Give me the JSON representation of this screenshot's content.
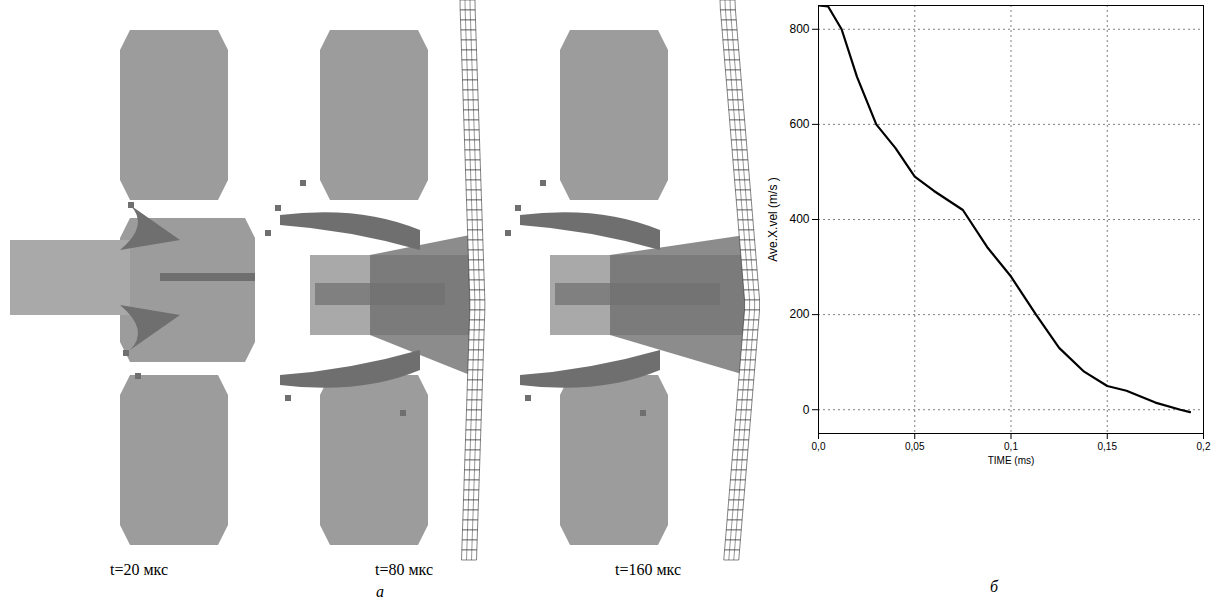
{
  "chart_data": {
    "type": "line",
    "x_label": "TIME (ms)",
    "y_label": "Ave.X.vel (m/s )",
    "x": [
      0,
      0.005,
      0.012,
      0.02,
      0.03,
      0.04,
      0.05,
      0.06,
      0.075,
      0.088,
      0.1,
      0.113,
      0.125,
      0.138,
      0.15,
      0.16,
      0.175,
      0.188,
      0.193
    ],
    "values": [
      850,
      848,
      800,
      700,
      600,
      550,
      490,
      460,
      420,
      340,
      280,
      200,
      130,
      80,
      50,
      40,
      15,
      0,
      -5
    ],
    "color": "#000000",
    "xlim": [
      0,
      0.2
    ],
    "ylim": [
      -50,
      850
    ],
    "xticks": [
      {
        "value": 0,
        "label": "0,0"
      },
      {
        "value": 0.05,
        "label": "0,05"
      },
      {
        "value": 0.1,
        "label": "0,1"
      },
      {
        "value": 0.15,
        "label": "0,15"
      },
      {
        "value": 0.2,
        "label": "0,2"
      }
    ],
    "yticks": [
      0,
      200,
      400,
      600,
      800
    ],
    "grid": true
  },
  "figure": {
    "panel_a": {
      "label": "а",
      "snapshots": [
        "t=20 мкс",
        "t=80 мкс",
        "t=160 мкс"
      ]
    },
    "panel_b": {
      "label": "б"
    }
  }
}
